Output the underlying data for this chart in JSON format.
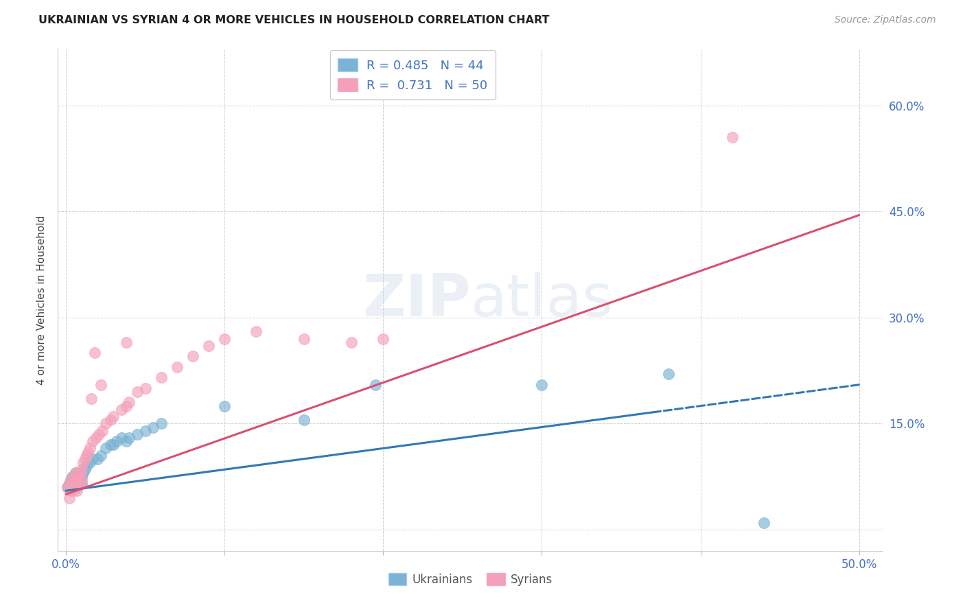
{
  "title": "UKRAINIAN VS SYRIAN 4 OR MORE VEHICLES IN HOUSEHOLD CORRELATION CHART",
  "source": "Source: ZipAtlas.com",
  "ylabel": "4 or more Vehicles in Household",
  "xlim": [
    -0.005,
    0.515
  ],
  "ylim": [
    -0.03,
    0.68
  ],
  "xticks": [
    0.0,
    0.1,
    0.2,
    0.3,
    0.4,
    0.5
  ],
  "yticks": [
    0.0,
    0.15,
    0.3,
    0.45,
    0.6
  ],
  "xtick_labels_show": [
    "0.0%",
    "",
    "",
    "",
    "",
    "50.0%"
  ],
  "ytick_labels_show": [
    "",
    "15.0%",
    "30.0%",
    "45.0%",
    "60.0%"
  ],
  "blue_color": "#7ab3d4",
  "pink_color": "#f4a0b8",
  "blue_line_color": "#3278b4",
  "pink_line_color": "#d95070",
  "watermark": "ZIPatlas",
  "background_color": "#ffffff",
  "grid_color": "#cccccc",
  "blue_R": 0.485,
  "blue_N": 44,
  "pink_R": 0.731,
  "pink_N": 50,
  "blue_line_y0": 0.055,
  "blue_line_y1": 0.205,
  "blue_line_solid_end": 0.37,
  "pink_line_y0": 0.05,
  "pink_line_y1": 0.445,
  "blue_points_x": [
    0.001,
    0.002,
    0.003,
    0.003,
    0.004,
    0.004,
    0.005,
    0.005,
    0.005,
    0.006,
    0.006,
    0.007,
    0.007,
    0.007,
    0.008,
    0.008,
    0.009,
    0.009,
    0.01,
    0.01,
    0.011,
    0.012,
    0.013,
    0.015,
    0.017,
    0.02,
    0.022,
    0.025,
    0.028,
    0.03,
    0.032,
    0.035,
    0.038,
    0.04,
    0.045,
    0.05,
    0.055,
    0.06,
    0.1,
    0.15,
    0.195,
    0.3,
    0.38,
    0.44
  ],
  "blue_points_y": [
    0.06,
    0.065,
    0.055,
    0.07,
    0.06,
    0.075,
    0.065,
    0.07,
    0.06,
    0.07,
    0.08,
    0.065,
    0.075,
    0.06,
    0.075,
    0.065,
    0.08,
    0.07,
    0.075,
    0.065,
    0.08,
    0.085,
    0.09,
    0.095,
    0.1,
    0.1,
    0.105,
    0.115,
    0.12,
    0.12,
    0.125,
    0.13,
    0.125,
    0.13,
    0.135,
    0.14,
    0.145,
    0.15,
    0.175,
    0.155,
    0.205,
    0.205,
    0.22,
    0.01
  ],
  "pink_points_x": [
    0.001,
    0.002,
    0.002,
    0.003,
    0.003,
    0.004,
    0.004,
    0.005,
    0.005,
    0.006,
    0.006,
    0.007,
    0.007,
    0.008,
    0.008,
    0.009,
    0.009,
    0.01,
    0.01,
    0.011,
    0.012,
    0.013,
    0.014,
    0.015,
    0.017,
    0.019,
    0.021,
    0.023,
    0.025,
    0.028,
    0.03,
    0.035,
    0.038,
    0.04,
    0.045,
    0.05,
    0.06,
    0.07,
    0.08,
    0.09,
    0.1,
    0.12,
    0.15,
    0.18,
    0.2,
    0.022,
    0.018,
    0.016,
    0.038,
    0.42
  ],
  "pink_points_y": [
    0.06,
    0.045,
    0.065,
    0.055,
    0.07,
    0.065,
    0.06,
    0.075,
    0.055,
    0.065,
    0.08,
    0.07,
    0.055,
    0.075,
    0.065,
    0.08,
    0.065,
    0.085,
    0.07,
    0.095,
    0.1,
    0.105,
    0.11,
    0.115,
    0.125,
    0.13,
    0.135,
    0.14,
    0.15,
    0.155,
    0.16,
    0.17,
    0.175,
    0.18,
    0.195,
    0.2,
    0.215,
    0.23,
    0.245,
    0.26,
    0.27,
    0.28,
    0.27,
    0.265,
    0.27,
    0.205,
    0.25,
    0.185,
    0.265,
    0.555
  ],
  "legend_blue_label": "R = 0.485   N = 44",
  "legend_pink_label": "R =  0.731   N = 50",
  "legend_group_blue": "Ukrainians",
  "legend_group_pink": "Syrians"
}
